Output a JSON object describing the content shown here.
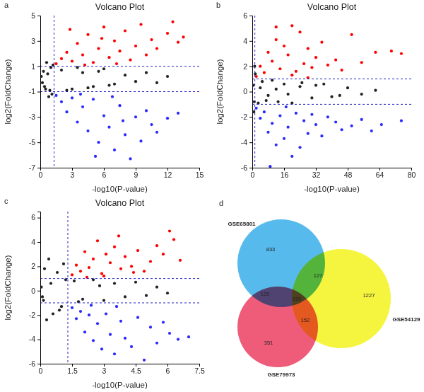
{
  "chart_data": [
    {
      "type": "scatter",
      "panel_label": "a",
      "title": "Volcano Plot",
      "x_label": "-log10(P-value)",
      "y_label": "log2(FoldChange)",
      "xlim": [
        0,
        15
      ],
      "xticks": [
        0,
        3,
        6,
        9,
        12,
        15
      ],
      "ylim": [
        -7,
        5
      ],
      "yticks": [
        -7,
        -5,
        -3,
        -1,
        1,
        3,
        5
      ],
      "marker": "circle",
      "thresholds": {
        "x": [
          1.3
        ],
        "y": [
          -1,
          1
        ]
      },
      "series": [
        {
          "color": "#222222",
          "x": [
            0.1,
            0.2,
            0.3,
            0.5,
            0.6,
            0.8,
            1.0,
            1.1,
            1.2,
            0.4,
            0.7,
            0.9,
            2,
            3,
            4,
            5,
            6,
            7,
            8,
            9,
            10,
            11,
            12,
            2.5,
            3.5,
            4.5,
            5.5,
            6.5
          ],
          "values": [
            0.2,
            -0.3,
            0.6,
            -0.8,
            1.3,
            -1.4,
            0.9,
            -1.2,
            1.1,
            -0.6,
            0.4,
            -0.9,
            0.7,
            -0.8,
            0.5,
            -0.6,
            0.8,
            -0.4,
            0.3,
            -0.2,
            0.5,
            -0.3,
            0.2,
            -0.9,
            0.9,
            -0.7,
            0.6,
            -0.5
          ]
        },
        {
          "color": "#ff0000",
          "x": [
            1.5,
            2,
            2.5,
            3,
            3.5,
            4,
            4.5,
            5,
            5.5,
            6,
            6.5,
            7,
            7.5,
            8,
            8.5,
            9,
            9.5,
            10,
            10.5,
            11,
            12,
            12.5,
            13,
            13.5,
            2.8,
            4.2,
            5.8,
            7.2
          ],
          "values": [
            1.2,
            1.6,
            2.1,
            1.4,
            2.8,
            1.9,
            3.5,
            1.3,
            2.4,
            4.1,
            1.7,
            3.0,
            2.2,
            3.8,
            1.5,
            2.6,
            4.3,
            1.9,
            3.1,
            2.4,
            3.6,
            4.5,
            2.9,
            3.3,
            3.9,
            1.1,
            3.2,
            1.2
          ]
        },
        {
          "color": "#2b2bff",
          "x": [
            1.5,
            2,
            2.5,
            3,
            3.5,
            4,
            4.5,
            5,
            5.5,
            6,
            6.5,
            7,
            7.5,
            8,
            8.5,
            9,
            9.5,
            10,
            10.5,
            11,
            12,
            13,
            3.8,
            5.2,
            6.8,
            7.8
          ],
          "values": [
            -1.3,
            -1.8,
            -2.6,
            -1.5,
            -3.4,
            -2.2,
            -4.1,
            -1.6,
            -5.0,
            -2.9,
            -3.8,
            -5.6,
            -2.1,
            -4.4,
            -6.3,
            -3.0,
            -4.9,
            -2.5,
            -3.6,
            -4.2,
            -3.1,
            -2.7,
            -1.2,
            -6.1,
            -1.4,
            -3.3
          ]
        }
      ]
    },
    {
      "type": "scatter",
      "panel_label": "b",
      "title": "Volcano Plot",
      "x_label": "-log10(P-value)",
      "y_label": "log2(FoldChange)",
      "xlim": [
        0,
        80
      ],
      "xticks": [
        0,
        16,
        32,
        48,
        64,
        80
      ],
      "ylim": [
        -6,
        6
      ],
      "yticks": [
        -6,
        -4,
        -2,
        0,
        2,
        4,
        6
      ],
      "marker": "circle",
      "thresholds": {
        "x": [
          1.3
        ],
        "y": [
          -1,
          1
        ]
      },
      "series": [
        {
          "color": "#222222",
          "x": [
            0.5,
            1,
            1.5,
            3,
            5,
            7,
            10,
            13,
            16,
            20,
            25,
            30,
            36,
            40,
            48,
            55,
            62,
            0.8,
            1.2,
            4,
            8,
            12,
            18,
            24,
            32,
            44
          ],
          "values": [
            0.5,
            -0.8,
            1.4,
            -0.9,
            0.8,
            -0.7,
            0.9,
            -0.8,
            0.6,
            -0.9,
            0.7,
            -0.5,
            0.6,
            -0.4,
            0.3,
            -0.2,
            0.1,
            -1.6,
            2.0,
            0.3,
            -0.3,
            0.2,
            -0.2,
            0.4,
            0.5,
            -0.3
          ]
        },
        {
          "color": "#ff0000",
          "x": [
            2,
            4,
            6,
            8,
            10,
            12,
            14,
            16,
            18,
            20,
            22,
            24,
            26,
            28,
            30,
            32,
            35,
            38,
            42,
            45,
            50,
            55,
            62,
            70,
            75,
            12,
            20,
            28
          ],
          "values": [
            1.2,
            2.0,
            1.5,
            3.1,
            2.4,
            4.1,
            1.8,
            3.6,
            2.9,
            5.2,
            1.6,
            4.7,
            2.2,
            3.4,
            1.9,
            2.7,
            3.9,
            2.1,
            2.5,
            1.7,
            4.5,
            2.3,
            3.1,
            3.2,
            3.0,
            5.1,
            1.3,
            1.1
          ]
        },
        {
          "color": "#2b2bff",
          "x": [
            2,
            4,
            6,
            8,
            10,
            12,
            14,
            16,
            18,
            20,
            22,
            24,
            26,
            28,
            30,
            32,
            35,
            38,
            42,
            45,
            50,
            55,
            60,
            65,
            75,
            9,
            17
          ],
          "values": [
            -1.3,
            -2.1,
            -1.6,
            -3.2,
            -2.5,
            -4.2,
            -1.9,
            -3.7,
            -2.8,
            -5.1,
            -1.7,
            -4.4,
            -2.3,
            -3.3,
            -1.8,
            -2.6,
            -3.5,
            -2.0,
            -2.4,
            -3.0,
            -2.7,
            -2.2,
            -3.1,
            -2.6,
            -2.3,
            -5.9,
            -1.2
          ]
        }
      ]
    },
    {
      "type": "scatter",
      "panel_label": "c",
      "title": "Volcano Plot",
      "x_label": "-log10(P-value)",
      "y_label": "log2(FoldChange)",
      "xlim": [
        0,
        7.5
      ],
      "xticks": [
        0,
        1.5,
        3,
        4.5,
        6,
        7.5
      ],
      "ylim": [
        -6,
        6.5
      ],
      "yticks": [
        -6,
        -4,
        -2,
        0,
        2,
        4,
        6
      ],
      "marker": "circle",
      "thresholds": {
        "x": [
          1.3
        ],
        "y": [
          -1,
          1
        ]
      },
      "series": [
        {
          "color": "#222222",
          "x": [
            0.05,
            0.1,
            0.2,
            0.3,
            0.4,
            0.6,
            0.8,
            1.0,
            1.2,
            0.15,
            0.5,
            0.9,
            1.1,
            1.6,
            2,
            2.5,
            3,
            3.5,
            4,
            4.5,
            5,
            5.5,
            6,
            1.8,
            2.8
          ],
          "values": [
            0.3,
            -0.5,
            1.8,
            -2.4,
            2.6,
            -1.9,
            1.5,
            -1.3,
            0.9,
            -0.8,
            0.6,
            -1.6,
            2.2,
            0.8,
            -0.7,
            0.9,
            -0.8,
            0.6,
            -0.5,
            0.7,
            -0.4,
            0.3,
            -0.2,
            -0.9,
            0.4
          ]
        },
        {
          "color": "#ff0000",
          "x": [
            1.5,
            1.7,
            1.9,
            2.1,
            2.3,
            2.5,
            2.7,
            2.9,
            3.1,
            3.3,
            3.5,
            3.8,
            4.0,
            4.3,
            4.6,
            4.9,
            5.2,
            5.5,
            5.8,
            6.1,
            6.3,
            6.6,
            2.2,
            3.0,
            3.7,
            4.4
          ],
          "values": [
            1.3,
            2.1,
            1.6,
            3.2,
            1.9,
            2.6,
            4.1,
            1.4,
            3.0,
            2.3,
            3.6,
            1.8,
            2.8,
            2.0,
            3.3,
            1.6,
            2.4,
            3.7,
            3.0,
            4.9,
            4.2,
            2.5,
            1.1,
            1.2,
            4.5,
            1.5
          ]
        },
        {
          "color": "#2b2bff",
          "x": [
            1.5,
            1.7,
            1.9,
            2.1,
            2.3,
            2.5,
            2.7,
            2.9,
            3.1,
            3.3,
            3.5,
            3.8,
            4.0,
            4.3,
            4.6,
            4.9,
            5.2,
            5.5,
            5.8,
            6.1,
            6.5,
            7.0,
            2.4,
            3.6
          ],
          "values": [
            -1.4,
            -2.3,
            -1.7,
            -3.4,
            -2.0,
            -4.1,
            -2.7,
            -4.8,
            -1.9,
            -3.6,
            -5.2,
            -2.5,
            -3.9,
            -4.6,
            -2.2,
            -5.7,
            -3.0,
            -4.3,
            -2.6,
            -3.5,
            -4.0,
            -3.8,
            -1.2,
            -1.3
          ]
        }
      ]
    },
    {
      "type": "venn",
      "panel_label": "d",
      "sets": [
        {
          "name": "GSE65801",
          "color": "#1fa3e6"
        },
        {
          "name": "GSE54129",
          "color": "#f2f200"
        },
        {
          "name": "GSE79973",
          "color": "#e8264d"
        }
      ],
      "regions": [
        {
          "sets": [
            0
          ],
          "value": 833
        },
        {
          "sets": [
            0,
            1
          ],
          "value": 127
        },
        {
          "sets": [
            1
          ],
          "value": 1227
        },
        {
          "sets": [
            0,
            2
          ],
          "value": 129
        },
        {
          "sets": [
            0,
            1,
            2
          ],
          "value": 159
        },
        {
          "sets": [
            1,
            2
          ],
          "value": 152
        },
        {
          "sets": [
            2
          ],
          "value": 351
        }
      ]
    }
  ]
}
